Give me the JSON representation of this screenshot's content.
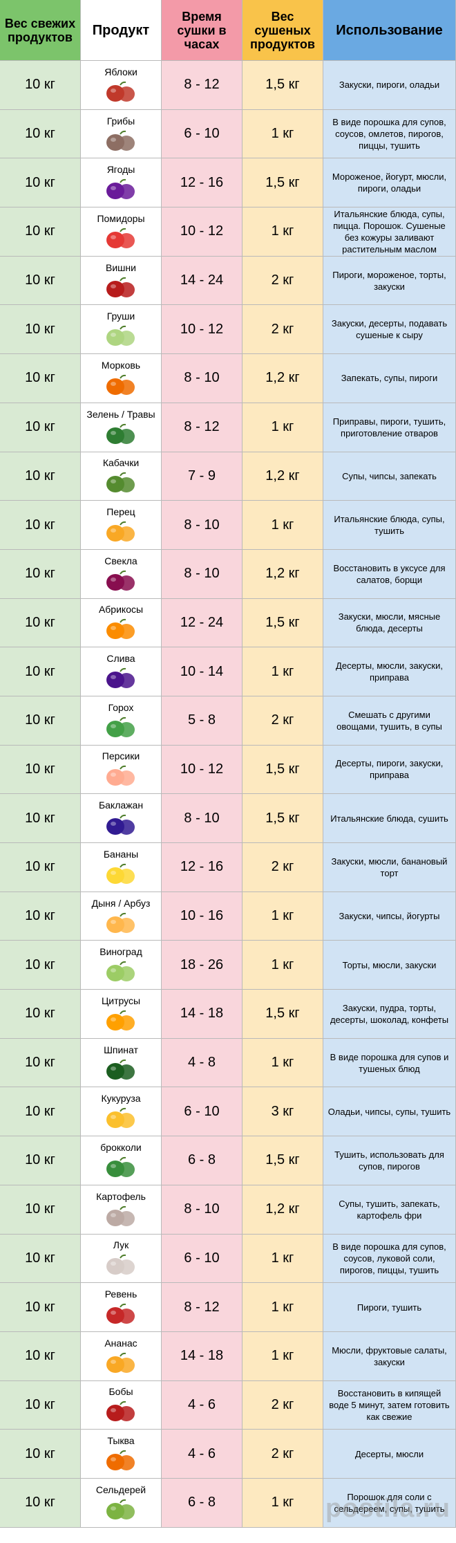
{
  "header": {
    "fresh_weight": "Вес свежих продуктов",
    "product": "Продукт",
    "drying_time": "Время сушки в часах",
    "dried_weight": "Вес сушеных продуктов",
    "usage": "Использование"
  },
  "colors": {
    "fresh_col": "#d9ead3",
    "time_col": "#f9d6dc",
    "dried_col": "#fde9c0",
    "usage_col": "#d1e3f4",
    "fresh_header": "#7cc46b",
    "time_header": "#f39aa8",
    "dried_header": "#f9c34a",
    "usage_header": "#6aa9e2"
  },
  "rows": [
    {
      "fresh": "10 кг",
      "product": "Яблоки",
      "time": "8 - 12",
      "dried": "1,5 кг",
      "usage": "Закуски, пироги, оладьи",
      "icon": "apple-icon",
      "color": "#c0392b"
    },
    {
      "fresh": "10 кг",
      "product": "Грибы",
      "time": "6 - 10",
      "dried": "1 кг",
      "usage": "В виде порошка для супов, соусов, омлетов, пирогов, пиццы, тушить",
      "icon": "mushroom-icon",
      "color": "#8d6e63"
    },
    {
      "fresh": "10 кг",
      "product": "Ягоды",
      "time": "12 - 16",
      "dried": "1,5 кг",
      "usage": "Мороженое, йогурт, мюсли, пироги, оладьи",
      "icon": "berries-icon",
      "color": "#6a1b9a"
    },
    {
      "fresh": "10 кг",
      "product": "Помидоры",
      "time": "10 - 12",
      "dried": "1 кг",
      "usage": "Итальянские блюда, супы, пицца. Порошок. Сушеные без кожуры заливают растительным маслом",
      "icon": "tomato-icon",
      "color": "#e53935"
    },
    {
      "fresh": "10 кг",
      "product": "Вишни",
      "time": "14 - 24",
      "dried": "2 кг",
      "usage": "Пироги, мороженое, торты, закуски",
      "icon": "cherry-icon",
      "color": "#b71c1c"
    },
    {
      "fresh": "10 кг",
      "product": "Груши",
      "time": "10 - 12",
      "dried": "2 кг",
      "usage": "Закуски, десерты, подавать сушеные к сыру",
      "icon": "pear-icon",
      "color": "#aed581"
    },
    {
      "fresh": "10 кг",
      "product": "Морковь",
      "time": "8 - 10",
      "dried": "1,2 кг",
      "usage": "Запекать, супы, пироги",
      "icon": "carrot-icon",
      "color": "#ef6c00"
    },
    {
      "fresh": "10 кг",
      "product": "Зелень / Травы",
      "time": "8 - 12",
      "dried": "1 кг",
      "usage": "Приправы, пироги, тушить, приготовление отваров",
      "icon": "herbs-icon",
      "color": "#2e7d32"
    },
    {
      "fresh": "10 кг",
      "product": "Кабачки",
      "time": "7 - 9",
      "dried": "1,2 кг",
      "usage": "Супы, чипсы, запекать",
      "icon": "zucchini-icon",
      "color": "#558b2f"
    },
    {
      "fresh": "10 кг",
      "product": "Перец",
      "time": "8 - 10",
      "dried": "1 кг",
      "usage": "Итальянские блюда, супы, тушить",
      "icon": "pepper-icon",
      "color": "#f9a825"
    },
    {
      "fresh": "10 кг",
      "product": "Свекла",
      "time": "8 - 10",
      "dried": "1,2 кг",
      "usage": "Восстановить в уксусе для салатов, борщи",
      "icon": "beet-icon",
      "color": "#880e4f"
    },
    {
      "fresh": "10 кг",
      "product": "Абрикосы",
      "time": "12 - 24",
      "dried": "1,5 кг",
      "usage": "Закуски, мюсли, мясные блюда, десерты",
      "icon": "apricot-icon",
      "color": "#fb8c00"
    },
    {
      "fresh": "10 кг",
      "product": "Слива",
      "time": "10 - 14",
      "dried": "1 кг",
      "usage": "Десерты, мюсли, закуски, приправа",
      "icon": "plum-icon",
      "color": "#4a148c"
    },
    {
      "fresh": "10 кг",
      "product": "Горох",
      "time": "5 - 8",
      "dried": "2 кг",
      "usage": "Смешать с другими овощами, тушить, в супы",
      "icon": "peas-icon",
      "color": "#43a047"
    },
    {
      "fresh": "10 кг",
      "product": "Персики",
      "time": "10 - 12",
      "dried": "1,5 кг",
      "usage": "Десерты, пироги, закуски, приправа",
      "icon": "peach-icon",
      "color": "#ffab91"
    },
    {
      "fresh": "10 кг",
      "product": "Баклажан",
      "time": "8 - 10",
      "dried": "1,5 кг",
      "usage": "Итальянские блюда, сушить",
      "icon": "eggplant-icon",
      "color": "#311b92"
    },
    {
      "fresh": "10 кг",
      "product": "Бананы",
      "time": "12 - 16",
      "dried": "2 кг",
      "usage": "Закуски, мюсли, банановый торт",
      "icon": "banana-icon",
      "color": "#fdd835"
    },
    {
      "fresh": "10 кг",
      "product": "Дыня / Арбуз",
      "time": "10 - 16",
      "dried": "1 кг",
      "usage": "Закуски, чипсы, йогурты",
      "icon": "melon-icon",
      "color": "#ffb74d"
    },
    {
      "fresh": "10 кг",
      "product": "Виноград",
      "time": "18 - 26",
      "dried": "1 кг",
      "usage": "Торты, мюсли, закуски",
      "icon": "grapes-icon",
      "color": "#9ccc65"
    },
    {
      "fresh": "10 кг",
      "product": "Цитрусы",
      "time": "14 - 18",
      "dried": "1,5 кг",
      "usage": "Закуски, пудра, торты, десерты, шоколад, конфеты",
      "icon": "citrus-icon",
      "color": "#ffa000"
    },
    {
      "fresh": "10 кг",
      "product": "Шпинат",
      "time": "4 - 8",
      "dried": "1 кг",
      "usage": "В виде порошка для супов и тушеных блюд",
      "icon": "spinach-icon",
      "color": "#1b5e20"
    },
    {
      "fresh": "10 кг",
      "product": "Кукуруза",
      "time": "6 - 10",
      "dried": "3 кг",
      "usage": "Оладьи, чипсы, супы, тушить",
      "icon": "corn-icon",
      "color": "#fbc02d"
    },
    {
      "fresh": "10 кг",
      "product": "брокколи",
      "time": "6 - 8",
      "dried": "1,5 кг",
      "usage": "Тушить, использовать для супов, пирогов",
      "icon": "broccoli-icon",
      "color": "#388e3c"
    },
    {
      "fresh": "10 кг",
      "product": "Картофель",
      "time": "8 - 10",
      "dried": "1,2 кг",
      "usage": "Супы, тушить, запекать, картофель фри",
      "icon": "potato-icon",
      "color": "#bcaaa4"
    },
    {
      "fresh": "10 кг",
      "product": "Лук",
      "time": "6 - 10",
      "dried": "1 кг",
      "usage": "В виде порошка для супов, соусов, луковой соли, пирогов, пиццы, тушить",
      "icon": "onion-icon",
      "color": "#d7ccc8"
    },
    {
      "fresh": "10 кг",
      "product": "Ревень",
      "time": "8 - 12",
      "dried": "1 кг",
      "usage": "Пироги, тушить",
      "icon": "rhubarb-icon",
      "color": "#c62828"
    },
    {
      "fresh": "10 кг",
      "product": "Ананас",
      "time": "14 - 18",
      "dried": "1 кг",
      "usage": "Мюсли, фруктовые салаты, закуски",
      "icon": "pineapple-icon",
      "color": "#f9a825"
    },
    {
      "fresh": "10 кг",
      "product": "Бобы",
      "time": "4 - 6",
      "dried": "2 кг",
      "usage": "Восстановить в кипящей воде 5 минут, затем готовить как свежие",
      "icon": "beans-icon",
      "color": "#b71c1c"
    },
    {
      "fresh": "10 кг",
      "product": "Тыква",
      "time": "4 - 6",
      "dried": "2 кг",
      "usage": "Десерты, мюсли",
      "icon": "pumpkin-icon",
      "color": "#ef6c00"
    },
    {
      "fresh": "10 кг",
      "product": "Сельдерей",
      "time": "6 - 8",
      "dried": "1 кг",
      "usage": "Порошок для соли с сельдереем, супы, тушить",
      "icon": "celery-icon",
      "color": "#7cb342"
    }
  ],
  "watermark": "postila.ru"
}
